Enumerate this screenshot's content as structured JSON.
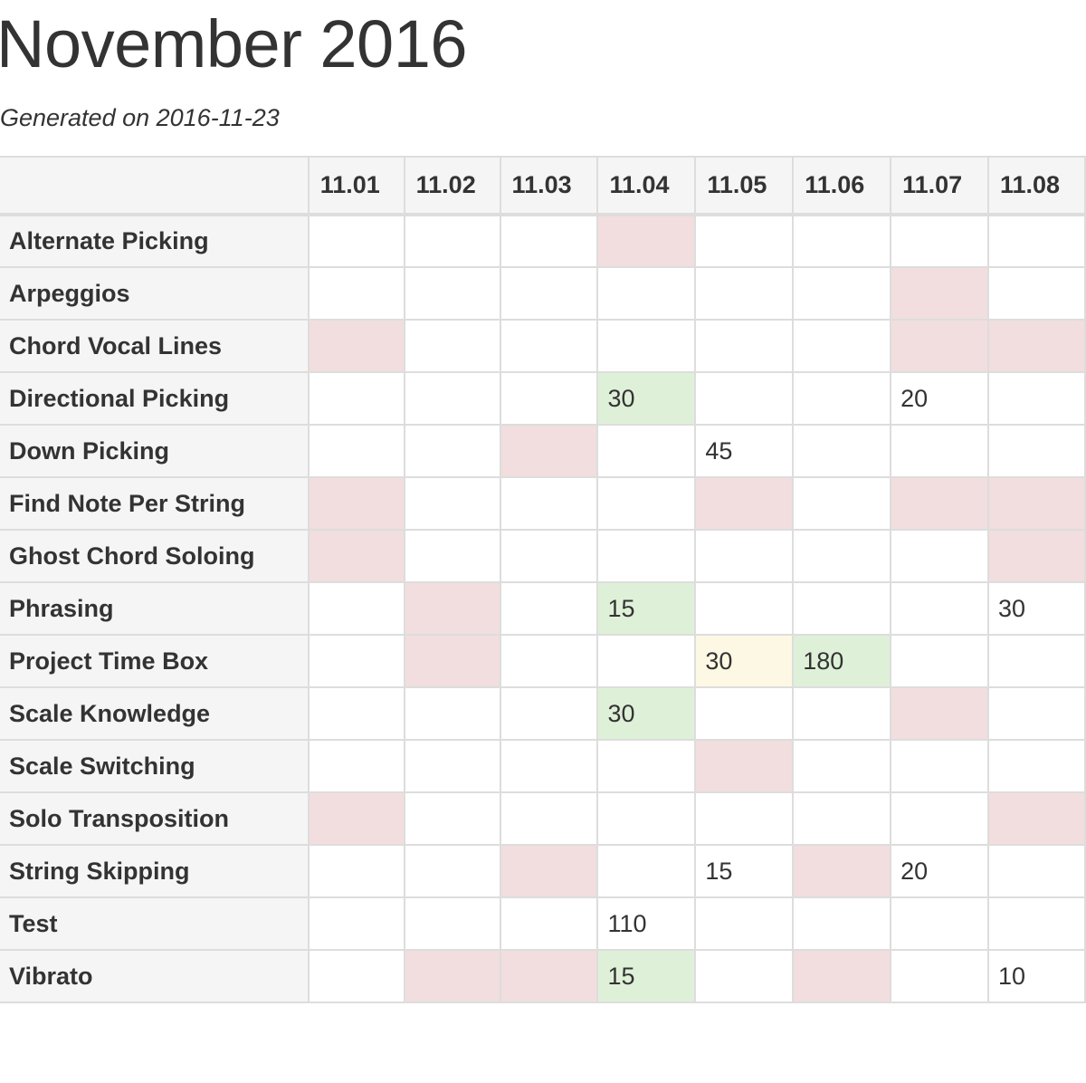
{
  "title": "November 2016",
  "subtitle": "Generated on 2016-11-23",
  "colors": {
    "red": "#f2dede",
    "green": "#dff0d8",
    "yellow": "#fcf8e3",
    "header_bg": "#f5f5f5",
    "border": "#dddddd"
  },
  "columns": [
    "11.01",
    "11.02",
    "11.03",
    "11.04",
    "11.05",
    "11.06",
    "11.07",
    "11.08"
  ],
  "rows": [
    {
      "label": "Alternate Picking",
      "cells": [
        {
          "v": "",
          "s": "none"
        },
        {
          "v": "",
          "s": "none"
        },
        {
          "v": "",
          "s": "none"
        },
        {
          "v": "",
          "s": "red"
        },
        {
          "v": "",
          "s": "none"
        },
        {
          "v": "",
          "s": "none"
        },
        {
          "v": "",
          "s": "none"
        },
        {
          "v": "",
          "s": "none"
        }
      ]
    },
    {
      "label": "Arpeggios",
      "cells": [
        {
          "v": "",
          "s": "none"
        },
        {
          "v": "",
          "s": "none"
        },
        {
          "v": "",
          "s": "none"
        },
        {
          "v": "",
          "s": "none"
        },
        {
          "v": "",
          "s": "none"
        },
        {
          "v": "",
          "s": "none"
        },
        {
          "v": "",
          "s": "red"
        },
        {
          "v": "",
          "s": "none"
        }
      ]
    },
    {
      "label": "Chord Vocal Lines",
      "cells": [
        {
          "v": "",
          "s": "red"
        },
        {
          "v": "",
          "s": "none"
        },
        {
          "v": "",
          "s": "none"
        },
        {
          "v": "",
          "s": "none"
        },
        {
          "v": "",
          "s": "none"
        },
        {
          "v": "",
          "s": "none"
        },
        {
          "v": "",
          "s": "red"
        },
        {
          "v": "",
          "s": "red"
        }
      ]
    },
    {
      "label": "Directional Picking",
      "cells": [
        {
          "v": "",
          "s": "none"
        },
        {
          "v": "",
          "s": "none"
        },
        {
          "v": "",
          "s": "none"
        },
        {
          "v": "30",
          "s": "green"
        },
        {
          "v": "",
          "s": "none"
        },
        {
          "v": "",
          "s": "none"
        },
        {
          "v": "20",
          "s": "none"
        },
        {
          "v": "",
          "s": "none"
        }
      ]
    },
    {
      "label": "Down Picking",
      "cells": [
        {
          "v": "",
          "s": "none"
        },
        {
          "v": "",
          "s": "none"
        },
        {
          "v": "",
          "s": "red"
        },
        {
          "v": "",
          "s": "none"
        },
        {
          "v": "45",
          "s": "none"
        },
        {
          "v": "",
          "s": "none"
        },
        {
          "v": "",
          "s": "none"
        },
        {
          "v": "",
          "s": "none"
        }
      ]
    },
    {
      "label": "Find Note Per String",
      "cells": [
        {
          "v": "",
          "s": "red"
        },
        {
          "v": "",
          "s": "none"
        },
        {
          "v": "",
          "s": "none"
        },
        {
          "v": "",
          "s": "none"
        },
        {
          "v": "",
          "s": "red"
        },
        {
          "v": "",
          "s": "none"
        },
        {
          "v": "",
          "s": "red"
        },
        {
          "v": "",
          "s": "red"
        }
      ]
    },
    {
      "label": "Ghost Chord Soloing",
      "cells": [
        {
          "v": "",
          "s": "red"
        },
        {
          "v": "",
          "s": "none"
        },
        {
          "v": "",
          "s": "none"
        },
        {
          "v": "",
          "s": "none"
        },
        {
          "v": "",
          "s": "none"
        },
        {
          "v": "",
          "s": "none"
        },
        {
          "v": "",
          "s": "none"
        },
        {
          "v": "",
          "s": "red"
        }
      ]
    },
    {
      "label": "Phrasing",
      "cells": [
        {
          "v": "",
          "s": "none"
        },
        {
          "v": "",
          "s": "red"
        },
        {
          "v": "",
          "s": "none"
        },
        {
          "v": "15",
          "s": "green"
        },
        {
          "v": "",
          "s": "none"
        },
        {
          "v": "",
          "s": "none"
        },
        {
          "v": "",
          "s": "none"
        },
        {
          "v": "30",
          "s": "none"
        }
      ]
    },
    {
      "label": "Project Time Box",
      "cells": [
        {
          "v": "",
          "s": "none"
        },
        {
          "v": "",
          "s": "red"
        },
        {
          "v": "",
          "s": "none"
        },
        {
          "v": "",
          "s": "none"
        },
        {
          "v": "30",
          "s": "yellow"
        },
        {
          "v": "180",
          "s": "green"
        },
        {
          "v": "",
          "s": "none"
        },
        {
          "v": "",
          "s": "none"
        }
      ]
    },
    {
      "label": "Scale Knowledge",
      "cells": [
        {
          "v": "",
          "s": "none"
        },
        {
          "v": "",
          "s": "none"
        },
        {
          "v": "",
          "s": "none"
        },
        {
          "v": "30",
          "s": "green"
        },
        {
          "v": "",
          "s": "none"
        },
        {
          "v": "",
          "s": "none"
        },
        {
          "v": "",
          "s": "red"
        },
        {
          "v": "",
          "s": "none"
        }
      ]
    },
    {
      "label": "Scale Switching",
      "cells": [
        {
          "v": "",
          "s": "none"
        },
        {
          "v": "",
          "s": "none"
        },
        {
          "v": "",
          "s": "none"
        },
        {
          "v": "",
          "s": "none"
        },
        {
          "v": "",
          "s": "red"
        },
        {
          "v": "",
          "s": "none"
        },
        {
          "v": "",
          "s": "none"
        },
        {
          "v": "",
          "s": "none"
        }
      ]
    },
    {
      "label": "Solo Transposition",
      "cells": [
        {
          "v": "",
          "s": "red"
        },
        {
          "v": "",
          "s": "none"
        },
        {
          "v": "",
          "s": "none"
        },
        {
          "v": "",
          "s": "none"
        },
        {
          "v": "",
          "s": "none"
        },
        {
          "v": "",
          "s": "none"
        },
        {
          "v": "",
          "s": "none"
        },
        {
          "v": "",
          "s": "red"
        }
      ]
    },
    {
      "label": "String Skipping",
      "cells": [
        {
          "v": "",
          "s": "none"
        },
        {
          "v": "",
          "s": "none"
        },
        {
          "v": "",
          "s": "red"
        },
        {
          "v": "",
          "s": "none"
        },
        {
          "v": "15",
          "s": "none"
        },
        {
          "v": "",
          "s": "red"
        },
        {
          "v": "20",
          "s": "none"
        },
        {
          "v": "",
          "s": "none"
        }
      ]
    },
    {
      "label": "Test",
      "cells": [
        {
          "v": "",
          "s": "none"
        },
        {
          "v": "",
          "s": "none"
        },
        {
          "v": "",
          "s": "none"
        },
        {
          "v": "110",
          "s": "none"
        },
        {
          "v": "",
          "s": "none"
        },
        {
          "v": "",
          "s": "none"
        },
        {
          "v": "",
          "s": "none"
        },
        {
          "v": "",
          "s": "none"
        }
      ]
    },
    {
      "label": "Vibrato",
      "cells": [
        {
          "v": "",
          "s": "none"
        },
        {
          "v": "",
          "s": "red"
        },
        {
          "v": "",
          "s": "red"
        },
        {
          "v": "15",
          "s": "green"
        },
        {
          "v": "",
          "s": "none"
        },
        {
          "v": "",
          "s": "red"
        },
        {
          "v": "",
          "s": "none"
        },
        {
          "v": "10",
          "s": "none"
        }
      ]
    }
  ]
}
